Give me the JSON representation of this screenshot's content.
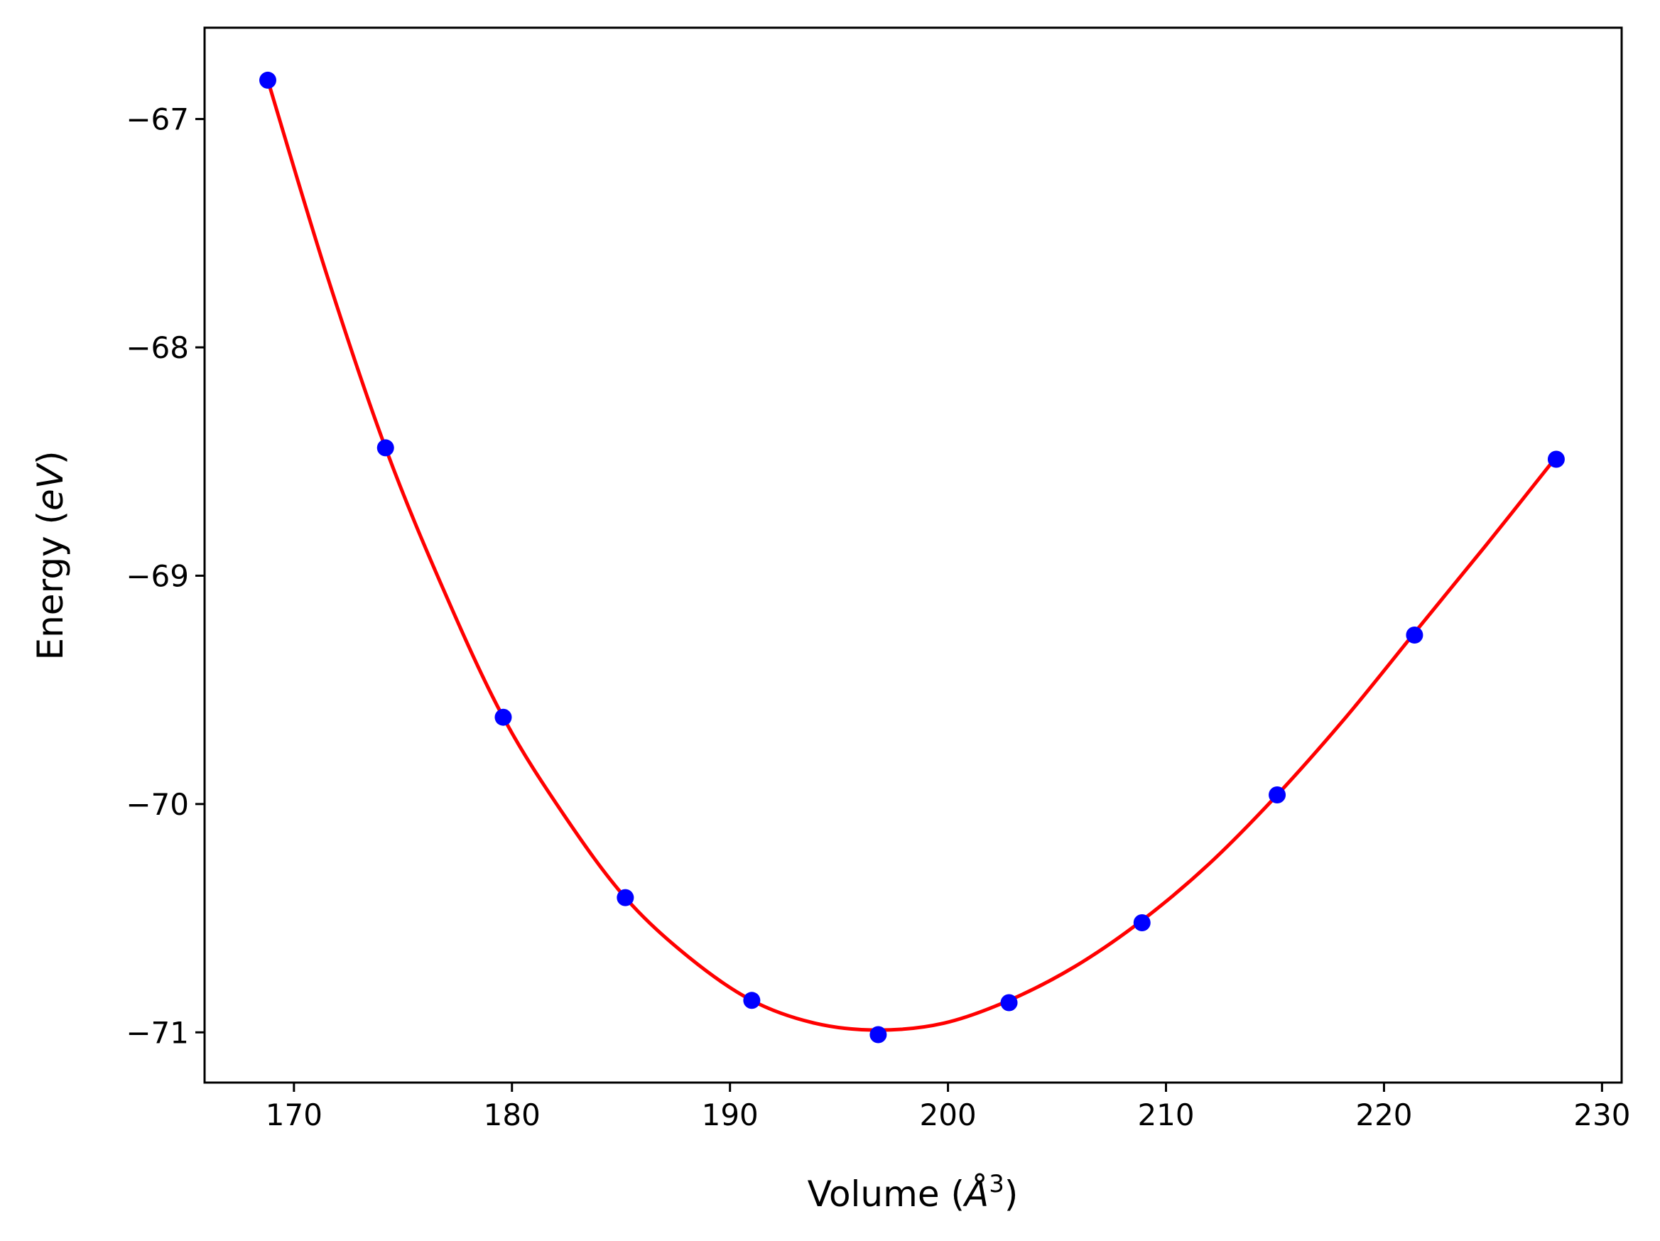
{
  "chart_data": {
    "type": "scatter",
    "title": "",
    "xlabel": "Volume",
    "xlabel_unit_base": "Å",
    "xlabel_unit_exp": "3",
    "ylabel": "Energy",
    "ylabel_unit": "eV",
    "xlim": [
      165.9,
      230.9
    ],
    "ylim": [
      -71.22,
      -66.6
    ],
    "xticks": [
      170,
      180,
      190,
      200,
      210,
      220,
      230
    ],
    "yticks": [
      -67,
      -68,
      -69,
      -70,
      -71
    ],
    "xtick_labels": [
      "170",
      "180",
      "190",
      "200",
      "210",
      "220",
      "230"
    ],
    "ytick_labels": [
      "−67",
      "−68",
      "−69",
      "−70",
      "−71"
    ],
    "grid": false,
    "legend": "none",
    "series": [
      {
        "kind": "points",
        "color": "#0000ff",
        "x": [
          168.8,
          174.2,
          179.6,
          185.2,
          191.0,
          196.8,
          202.8,
          208.9,
          215.1,
          221.4,
          227.9
        ],
        "y": [
          -66.83,
          -68.44,
          -69.62,
          -70.41,
          -70.86,
          -71.01,
          -70.87,
          -70.52,
          -69.96,
          -69.26,
          -68.49
        ]
      },
      {
        "kind": "fit",
        "color": "#ff0000",
        "x": [
          168.8,
          171.5,
          174.2,
          176.9,
          179.6,
          182.4,
          185.2,
          188.1,
          191.0,
          193.9,
          196.8,
          199.8,
          202.8,
          205.85,
          208.9,
          212.0,
          215.1,
          218.25,
          221.4,
          224.65,
          227.9
        ],
        "y": [
          -66.83,
          -67.68,
          -68.44,
          -69.07,
          -69.62,
          -70.05,
          -70.41,
          -70.67,
          -70.86,
          -70.96,
          -70.99,
          -70.96,
          -70.86,
          -70.71,
          -70.51,
          -70.26,
          -69.96,
          -69.62,
          -69.25,
          -68.87,
          -68.48
        ]
      }
    ]
  }
}
